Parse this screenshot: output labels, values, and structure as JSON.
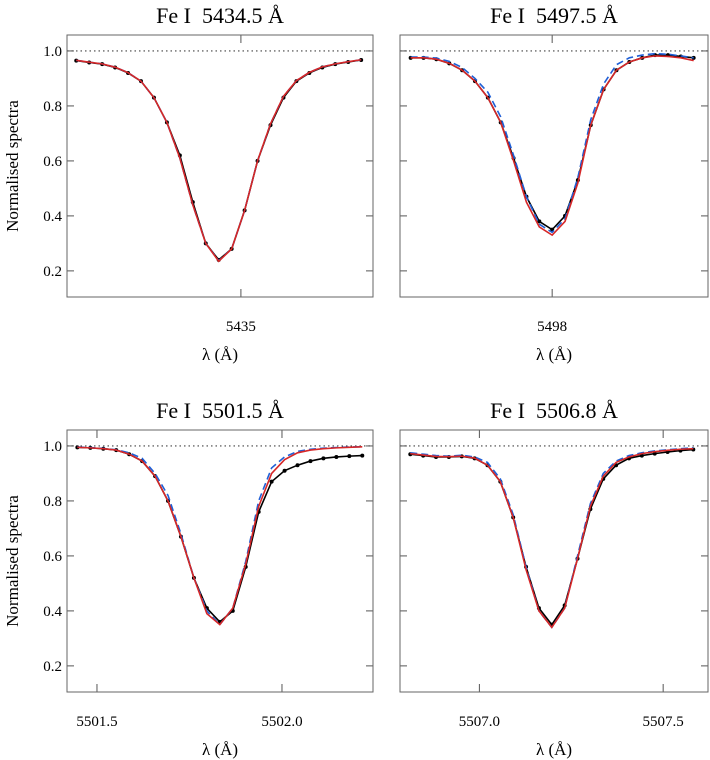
{
  "chart_data": [
    {
      "type": "line",
      "title": "Fe I  5434.5 Å",
      "x_label": "λ (Å)",
      "y_label": "Normalised spectra",
      "xlim": [
        5434.53,
        5435.357
      ],
      "ylim": [
        0.105,
        1.058
      ],
      "xticks": [
        5435
      ],
      "yticks": [
        0.2,
        0.4,
        0.6,
        0.8,
        {
          "value": 1.0,
          "label": "1.0"
        }
      ],
      "hline": 1.0,
      "x": [
        5434.555,
        5434.59,
        5434.625,
        5434.66,
        5434.695,
        5434.73,
        5434.765,
        5434.8,
        5434.835,
        5434.87,
        5434.905,
        5434.94,
        5434.975,
        5435.01,
        5435.045,
        5435.08,
        5435.115,
        5435.15,
        5435.185,
        5435.22,
        5435.255,
        5435.29,
        5435.325
      ],
      "series": [
        {
          "color": "#000000",
          "marker": true,
          "values": [
            0.965,
            0.958,
            0.952,
            0.94,
            0.92,
            0.89,
            0.83,
            0.74,
            0.62,
            0.45,
            0.3,
            0.24,
            0.28,
            0.42,
            0.6,
            0.73,
            0.83,
            0.89,
            0.92,
            0.94,
            0.952,
            0.96,
            0.967
          ]
        },
        {
          "color": "#1f5fd6",
          "dashed": true,
          "values": [
            0.966,
            0.959,
            0.953,
            0.941,
            0.921,
            0.89,
            0.83,
            0.74,
            0.61,
            0.44,
            0.3,
            0.237,
            0.28,
            0.42,
            0.6,
            0.735,
            0.835,
            0.892,
            0.922,
            0.942,
            0.953,
            0.961,
            0.968
          ]
        },
        {
          "color": "#d62728",
          "values": [
            0.966,
            0.959,
            0.953,
            0.941,
            0.921,
            0.89,
            0.83,
            0.74,
            0.61,
            0.44,
            0.3,
            0.235,
            0.28,
            0.42,
            0.6,
            0.735,
            0.835,
            0.892,
            0.922,
            0.942,
            0.953,
            0.961,
            0.968
          ]
        }
      ]
    },
    {
      "type": "line",
      "title": "Fe I  5497.5 Å",
      "x_label": "λ (Å)",
      "xlim": [
        5497.586,
        5498.424
      ],
      "ylim": [
        0.105,
        1.058
      ],
      "xticks": [
        5498
      ],
      "yticks": [
        0.2,
        0.4,
        0.6,
        0.8,
        {
          "value": 1.0,
          "label": "1.0"
        }
      ],
      "hline": 1.0,
      "x": [
        5497.615,
        5497.65,
        5497.685,
        5497.72,
        5497.755,
        5497.79,
        5497.825,
        5497.86,
        5497.895,
        5497.93,
        5497.965,
        5498.0,
        5498.035,
        5498.07,
        5498.105,
        5498.14,
        5498.175,
        5498.21,
        5498.245,
        5498.28,
        5498.315,
        5498.35,
        5498.385
      ],
      "series": [
        {
          "color": "#000000",
          "marker": true,
          "values": [
            0.975,
            0.975,
            0.97,
            0.955,
            0.93,
            0.89,
            0.83,
            0.74,
            0.61,
            0.47,
            0.38,
            0.35,
            0.4,
            0.53,
            0.73,
            0.86,
            0.93,
            0.96,
            0.975,
            0.985,
            0.985,
            0.98,
            0.975
          ]
        },
        {
          "color": "#1f5fd6",
          "dashed": true,
          "values": [
            0.978,
            0.978,
            0.974,
            0.962,
            0.94,
            0.9,
            0.85,
            0.76,
            0.62,
            0.47,
            0.37,
            0.34,
            0.39,
            0.54,
            0.75,
            0.88,
            0.95,
            0.975,
            0.985,
            0.99,
            0.988,
            0.982,
            0.975
          ]
        },
        {
          "color": "#d62728",
          "values": [
            0.975,
            0.975,
            0.97,
            0.955,
            0.93,
            0.89,
            0.83,
            0.74,
            0.6,
            0.45,
            0.36,
            0.33,
            0.38,
            0.52,
            0.73,
            0.86,
            0.93,
            0.96,
            0.975,
            0.982,
            0.98,
            0.975,
            0.965
          ]
        }
      ]
    },
    {
      "type": "line",
      "title": "Fe I  5501.5 Å",
      "x_label": "λ (Å)",
      "y_label": "Normalised spectra",
      "xlim": [
        5501.419,
        5502.246
      ],
      "ylim": [
        0.105,
        1.058
      ],
      "xticks": [
        5501.5,
        {
          "value": 5502.0,
          "label": "5502.0"
        }
      ],
      "yticks": [
        0.2,
        0.4,
        0.6,
        0.8,
        {
          "value": 1.0,
          "label": "1.0"
        }
      ],
      "hline": 1.0,
      "x": [
        5501.447,
        5501.482,
        5501.517,
        5501.552,
        5501.587,
        5501.622,
        5501.657,
        5501.692,
        5501.727,
        5501.762,
        5501.797,
        5501.832,
        5501.867,
        5501.902,
        5501.937,
        5501.972,
        5502.007,
        5502.042,
        5502.077,
        5502.112,
        5502.147,
        5502.182,
        5502.217
      ],
      "series": [
        {
          "color": "#000000",
          "marker": true,
          "values": [
            0.995,
            0.993,
            0.99,
            0.985,
            0.97,
            0.945,
            0.89,
            0.8,
            0.67,
            0.52,
            0.41,
            0.36,
            0.4,
            0.56,
            0.76,
            0.87,
            0.91,
            0.93,
            0.945,
            0.955,
            0.96,
            0.963,
            0.965
          ]
        },
        {
          "color": "#1f5fd6",
          "dashed": true,
          "values": [
            0.996,
            0.994,
            0.991,
            0.986,
            0.975,
            0.955,
            0.9,
            0.82,
            0.68,
            0.52,
            0.4,
            0.35,
            0.41,
            0.58,
            0.8,
            0.92,
            0.96,
            0.98,
            0.988,
            0.992,
            0.994,
            0.996,
            0.997
          ]
        },
        {
          "color": "#d62728",
          "values": [
            0.995,
            0.993,
            0.99,
            0.985,
            0.97,
            0.945,
            0.89,
            0.8,
            0.67,
            0.52,
            0.39,
            0.35,
            0.41,
            0.57,
            0.78,
            0.9,
            0.95,
            0.975,
            0.985,
            0.99,
            0.993,
            0.995,
            0.997
          ]
        }
      ]
    },
    {
      "type": "line",
      "title": "Fe I  5506.8 Å",
      "x_label": "λ (Å)",
      "xlim": [
        5506.784,
        5507.622
      ],
      "ylim": [
        0.105,
        1.058
      ],
      "xticks": [
        {
          "value": 5507.0,
          "label": "5507.0"
        },
        5507.5
      ],
      "yticks": [
        0.2,
        0.4,
        0.6,
        0.8,
        {
          "value": 1.0,
          "label": "1.0"
        }
      ],
      "hline": 1.0,
      "x": [
        5506.812,
        5506.847,
        5506.882,
        5506.917,
        5506.952,
        5506.987,
        5507.022,
        5507.057,
        5507.092,
        5507.127,
        5507.162,
        5507.197,
        5507.232,
        5507.267,
        5507.302,
        5507.337,
        5507.372,
        5507.407,
        5507.442,
        5507.477,
        5507.512,
        5507.547,
        5507.582
      ],
      "series": [
        {
          "color": "#000000",
          "marker": true,
          "values": [
            0.97,
            0.965,
            0.96,
            0.96,
            0.962,
            0.955,
            0.93,
            0.87,
            0.74,
            0.56,
            0.41,
            0.35,
            0.42,
            0.59,
            0.77,
            0.88,
            0.93,
            0.955,
            0.965,
            0.972,
            0.978,
            0.983,
            0.987
          ]
        },
        {
          "color": "#1f5fd6",
          "dashed": true,
          "values": [
            0.975,
            0.97,
            0.965,
            0.963,
            0.966,
            0.96,
            0.94,
            0.88,
            0.75,
            0.56,
            0.4,
            0.34,
            0.41,
            0.6,
            0.79,
            0.9,
            0.945,
            0.965,
            0.975,
            0.982,
            0.986,
            0.99,
            0.993
          ]
        },
        {
          "color": "#d62728",
          "values": [
            0.972,
            0.967,
            0.962,
            0.961,
            0.963,
            0.956,
            0.93,
            0.87,
            0.74,
            0.55,
            0.4,
            0.34,
            0.41,
            0.59,
            0.78,
            0.89,
            0.94,
            0.96,
            0.972,
            0.979,
            0.984,
            0.988,
            0.99
          ]
        }
      ]
    }
  ]
}
